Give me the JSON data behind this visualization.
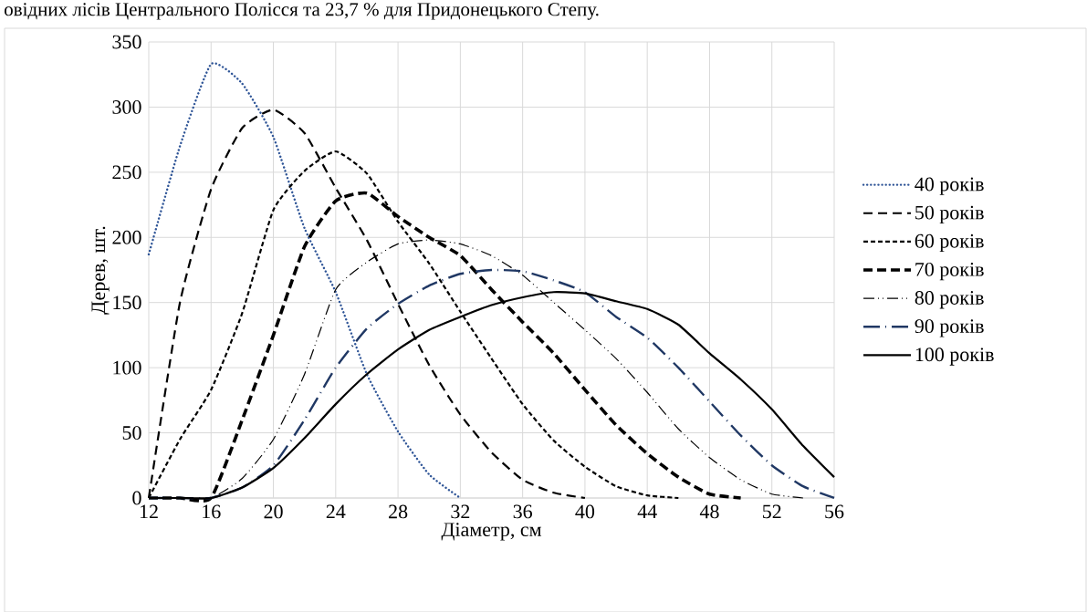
{
  "chart_data": {
    "type": "line",
    "annotations": [
      "овідних лісів Центрального Полісся та 23,7 % для Придонецького Степу."
    ],
    "xlabel": "Діаметр, см",
    "ylabel": "Дерев, шт.",
    "x": [
      12,
      14,
      16,
      18,
      20,
      22,
      24,
      26,
      28,
      30,
      32,
      34,
      36,
      38,
      40,
      42,
      44,
      46,
      48,
      50,
      52,
      54,
      56
    ],
    "series": [
      {
        "name": "40 років",
        "color": "#2f5597",
        "line_style": "dotted",
        "values": [
          187,
          270,
          333,
          318,
          277,
          207,
          158,
          95,
          51,
          18,
          0,
          null,
          null,
          null,
          null,
          null,
          null,
          null,
          null,
          null,
          null,
          null,
          null
        ]
      },
      {
        "name": "50 років",
        "color": "#000000",
        "line_style": "dashed",
        "values": [
          0,
          150,
          237,
          284,
          298,
          280,
          238,
          198,
          149,
          102,
          64,
          35,
          14,
          4,
          0,
          null,
          null,
          null,
          null,
          null,
          null,
          null,
          null
        ]
      },
      {
        "name": "60 років",
        "color": "#000000",
        "line_style": "dashed",
        "values": [
          0,
          45,
          83,
          142,
          221,
          251,
          266,
          249,
          212,
          180,
          143,
          107,
          72,
          44,
          24,
          9,
          2,
          0,
          null,
          null,
          null,
          null,
          null
        ]
      },
      {
        "name": "70 років",
        "color": "#000000",
        "line_style": "dashed",
        "values": [
          0,
          0,
          0,
          60,
          125,
          193,
          228,
          234,
          216,
          200,
          186,
          160,
          135,
          111,
          83,
          56,
          34,
          16,
          3,
          0,
          null,
          null,
          null
        ]
      },
      {
        "name": "80 років",
        "color": "#000000",
        "line_style": "dashdotdot",
        "values": [
          0,
          0,
          0,
          15,
          45,
          95,
          160,
          181,
          195,
          198,
          195,
          186,
          171,
          150,
          129,
          107,
          81,
          53,
          31,
          14,
          3,
          0,
          null
        ]
      },
      {
        "name": "90 років",
        "color": "#203864",
        "line_style": "dashdot",
        "values": [
          0,
          0,
          0,
          8,
          25,
          60,
          100,
          130,
          149,
          163,
          172,
          175,
          174,
          167,
          158,
          139,
          123,
          100,
          74,
          48,
          25,
          9,
          0
        ]
      },
      {
        "name": "100 років",
        "color": "#000000",
        "line_style": "solid",
        "values": [
          0,
          0,
          0,
          8,
          23,
          46,
          72,
          95,
          114,
          129,
          139,
          148,
          154,
          158,
          157,
          151,
          145,
          133,
          111,
          91,
          68,
          40,
          16
        ]
      }
    ],
    "xlim": [
      12,
      56
    ],
    "xticks": [
      12,
      16,
      20,
      24,
      28,
      32,
      36,
      40,
      44,
      48,
      52,
      56
    ],
    "ylim": [
      0,
      350
    ],
    "yticks": [
      0,
      50,
      100,
      150,
      200,
      250,
      300,
      350
    ],
    "grid": true,
    "legend": "right"
  }
}
